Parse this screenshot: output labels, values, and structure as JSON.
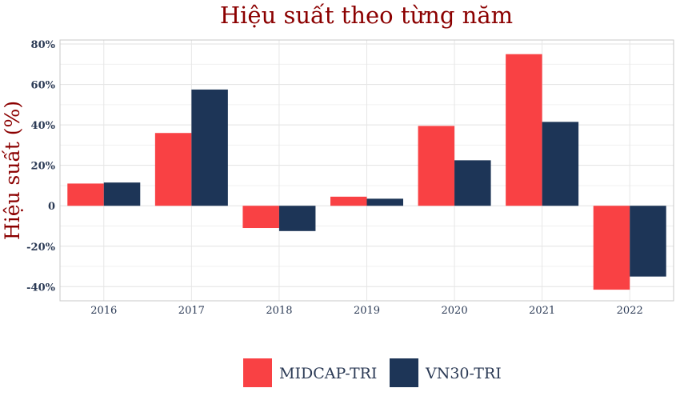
{
  "chart_data": {
    "type": "bar",
    "title": "Hiệu suất theo từng năm",
    "xlabel": "",
    "ylabel": "Hiệu suất (%)",
    "categories": [
      "2016",
      "2017",
      "2018",
      "2019",
      "2020",
      "2021",
      "2022"
    ],
    "series": [
      {
        "name": "MIDCAP-TRI",
        "color": "#f94144",
        "values": [
          11,
          36,
          -11,
          4.5,
          39.5,
          75,
          -41.5
        ]
      },
      {
        "name": "VN30-TRI",
        "color": "#1d3557",
        "values": [
          11.5,
          57.5,
          -12.5,
          3.5,
          22.5,
          41.5,
          -35
        ]
      }
    ],
    "ylim": [
      -47,
      82
    ],
    "yticks": [
      -40,
      -20,
      0,
      20,
      40,
      60,
      80
    ],
    "ytick_labels": [
      "-40%",
      "-20%",
      "0",
      "20%",
      "40%",
      "60%",
      "80%"
    ],
    "grid": true,
    "legend_position": "bottom-center",
    "colors": {
      "title": "#8b0000",
      "ylabel": "#8b0000",
      "tick_text": "#2b3a55"
    }
  }
}
